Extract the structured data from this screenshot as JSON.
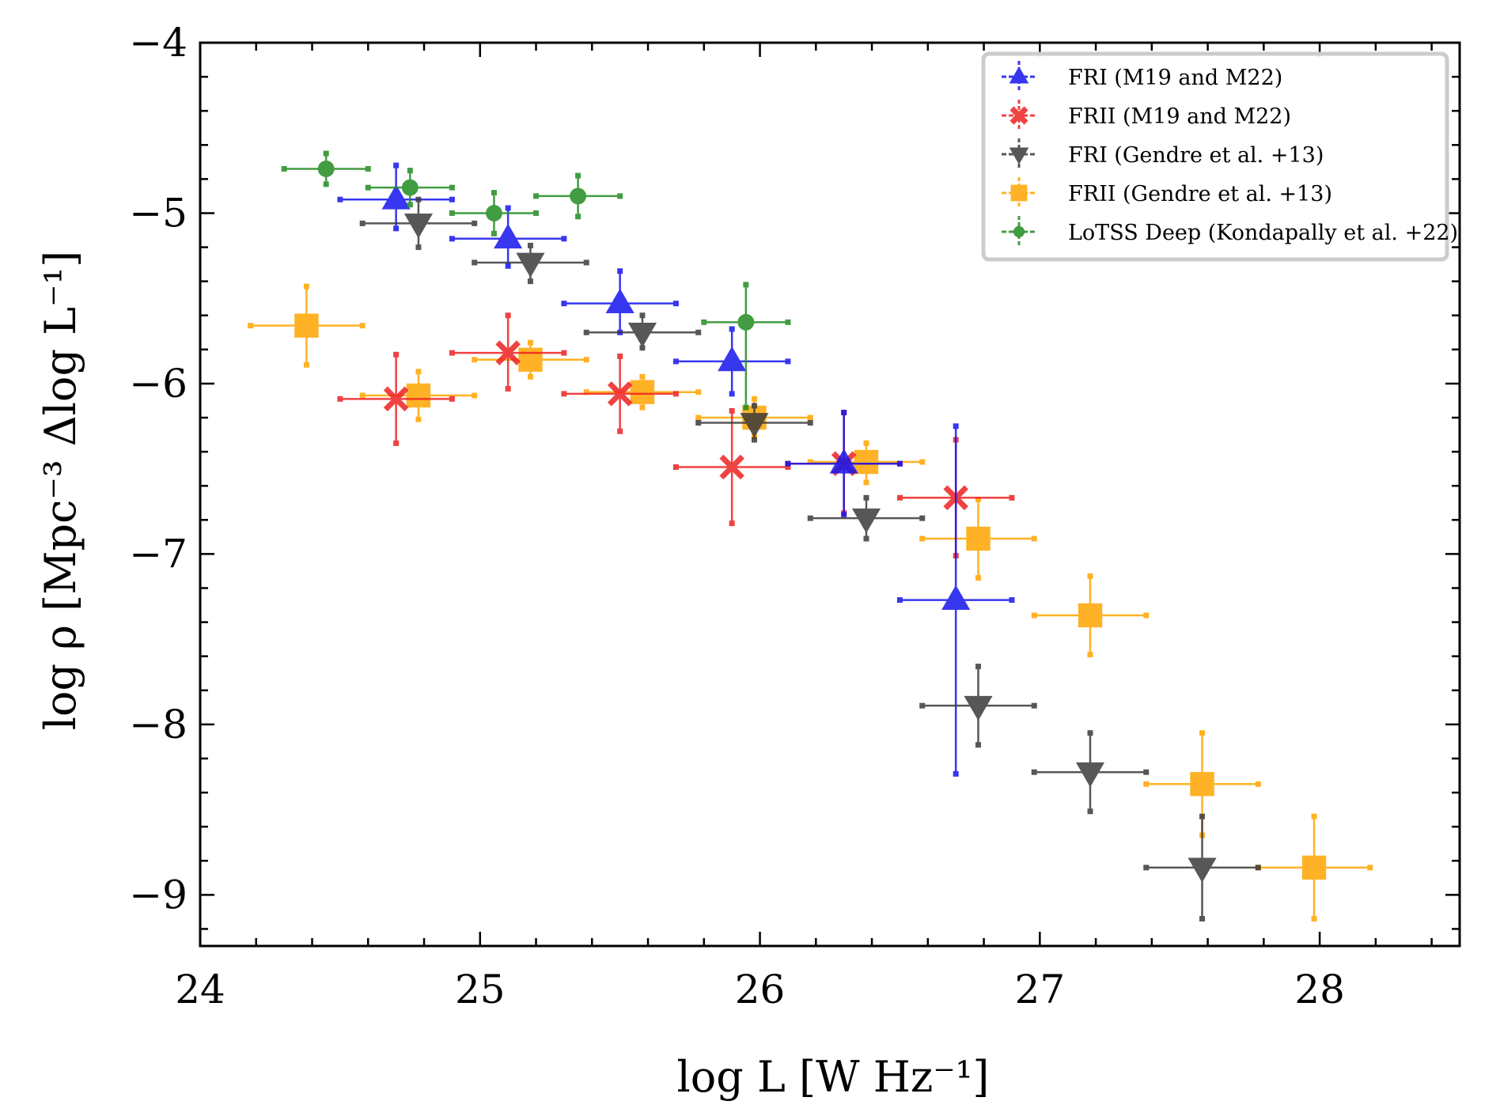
{
  "chart_data": {
    "type": "scatter",
    "xlabel": "log L [W Hz⁻¹]",
    "ylabel": "log ρ [Mpc⁻³ Δlog L⁻¹]",
    "xlim": [
      24,
      28.5
    ],
    "ylim": [
      -9.3,
      -4
    ],
    "x_ticks": [
      24,
      25,
      26,
      27,
      28
    ],
    "y_ticks": [
      -4,
      -5,
      -6,
      -7,
      -8,
      -9
    ],
    "x_tick_labels": [
      "24",
      "25",
      "26",
      "27",
      "28"
    ],
    "y_tick_labels": [
      "−4",
      "−5",
      "−6",
      "−7",
      "−8",
      "−9"
    ],
    "grid": false,
    "legend_position": "top-right",
    "series": [
      {
        "name": "FRI (M19 and M22)",
        "color": "#1515ee",
        "marker": "triangle-up",
        "points": [
          {
            "x": 24.7,
            "y": -4.92,
            "xerr": 0.2,
            "ylo": 0.17,
            "yhi": 0.2
          },
          {
            "x": 25.1,
            "y": -5.15,
            "xerr": 0.2,
            "ylo": 0.16,
            "yhi": 0.18
          },
          {
            "x": 25.5,
            "y": -5.53,
            "xerr": 0.2,
            "ylo": 0.17,
            "yhi": 0.19
          },
          {
            "x": 25.9,
            "y": -5.87,
            "xerr": 0.2,
            "ylo": 0.19,
            "yhi": 0.19
          },
          {
            "x": 26.3,
            "y": -6.47,
            "xerr": 0.2,
            "ylo": 0.3,
            "yhi": 0.3
          },
          {
            "x": 26.7,
            "y": -7.27,
            "xerr": 0.2,
            "ylo": 1.02,
            "yhi": 1.02
          }
        ]
      },
      {
        "name": "FRII (M19 and M22)",
        "color": "#ee2222",
        "marker": "x",
        "points": [
          {
            "x": 24.7,
            "y": -6.09,
            "xerr": 0.2,
            "ylo": 0.26,
            "yhi": 0.26
          },
          {
            "x": 25.1,
            "y": -5.82,
            "xerr": 0.2,
            "ylo": 0.21,
            "yhi": 0.22
          },
          {
            "x": 25.5,
            "y": -6.06,
            "xerr": 0.2,
            "ylo": 0.22,
            "yhi": 0.22
          },
          {
            "x": 25.9,
            "y": -6.49,
            "xerr": 0.2,
            "ylo": 0.33,
            "yhi": 0.33
          },
          {
            "x": 26.3,
            "y": -6.47,
            "xerr": 0.2,
            "ylo": 0.29,
            "yhi": 0.3
          },
          {
            "x": 26.7,
            "y": -6.67,
            "xerr": 0.2,
            "ylo": 0.34,
            "yhi": 0.34
          }
        ]
      },
      {
        "name": "FRI (Gendre et al. +13)",
        "color": "#3a3a3a",
        "marker": "triangle-down",
        "points": [
          {
            "x": 24.78,
            "y": -5.06,
            "xerr": 0.2,
            "ylo": 0.14,
            "yhi": 0.14
          },
          {
            "x": 25.18,
            "y": -5.29,
            "xerr": 0.2,
            "ylo": 0.11,
            "yhi": 0.1
          },
          {
            "x": 25.58,
            "y": -5.7,
            "xerr": 0.2,
            "ylo": 0.09,
            "yhi": 0.1
          },
          {
            "x": 25.98,
            "y": -6.23,
            "xerr": 0.2,
            "ylo": 0.1,
            "yhi": 0.1
          },
          {
            "x": 26.38,
            "y": -6.79,
            "xerr": 0.2,
            "ylo": 0.12,
            "yhi": 0.12
          },
          {
            "x": 26.78,
            "y": -7.89,
            "xerr": 0.2,
            "ylo": 0.23,
            "yhi": 0.23
          },
          {
            "x": 27.18,
            "y": -8.28,
            "xerr": 0.2,
            "ylo": 0.23,
            "yhi": 0.23
          },
          {
            "x": 27.58,
            "y": -8.84,
            "xerr": 0.2,
            "ylo": 0.3,
            "yhi": 0.3
          }
        ]
      },
      {
        "name": "FRII (Gendre et al. +13)",
        "color": "#ffa500",
        "marker": "square",
        "points": [
          {
            "x": 24.38,
            "y": -5.66,
            "xerr": 0.2,
            "ylo": 0.23,
            "yhi": 0.23
          },
          {
            "x": 24.78,
            "y": -6.07,
            "xerr": 0.2,
            "ylo": 0.14,
            "yhi": 0.14
          },
          {
            "x": 25.18,
            "y": -5.86,
            "xerr": 0.2,
            "ylo": 0.1,
            "yhi": 0.1
          },
          {
            "x": 25.58,
            "y": -6.05,
            "xerr": 0.2,
            "ylo": 0.09,
            "yhi": 0.09
          },
          {
            "x": 25.98,
            "y": -6.2,
            "xerr": 0.2,
            "ylo": 0.11,
            "yhi": 0.11
          },
          {
            "x": 26.38,
            "y": -6.46,
            "xerr": 0.2,
            "ylo": 0.12,
            "yhi": 0.11
          },
          {
            "x": 26.78,
            "y": -6.91,
            "xerr": 0.2,
            "ylo": 0.23,
            "yhi": 0.23
          },
          {
            "x": 27.18,
            "y": -7.36,
            "xerr": 0.2,
            "ylo": 0.23,
            "yhi": 0.23
          },
          {
            "x": 27.58,
            "y": -8.35,
            "xerr": 0.2,
            "ylo": 0.3,
            "yhi": 0.3
          },
          {
            "x": 27.98,
            "y": -8.84,
            "xerr": 0.2,
            "ylo": 0.3,
            "yhi": 0.3
          }
        ]
      },
      {
        "name": "LoTSS Deep (Kondapally et al. +22)",
        "color": "#228b22",
        "marker": "circle",
        "points": [
          {
            "x": 24.45,
            "y": -4.74,
            "xerr": 0.15,
            "ylo": 0.09,
            "yhi": 0.09
          },
          {
            "x": 24.75,
            "y": -4.85,
            "xerr": 0.15,
            "ylo": 0.1,
            "yhi": 0.1
          },
          {
            "x": 25.05,
            "y": -5.0,
            "xerr": 0.15,
            "ylo": 0.12,
            "yhi": 0.12
          },
          {
            "x": 25.35,
            "y": -4.9,
            "xerr": 0.15,
            "ylo": 0.12,
            "yhi": 0.12
          },
          {
            "x": 25.95,
            "y": -5.64,
            "xerr": 0.15,
            "ylo": 0.5,
            "yhi": 0.22
          }
        ]
      }
    ]
  }
}
